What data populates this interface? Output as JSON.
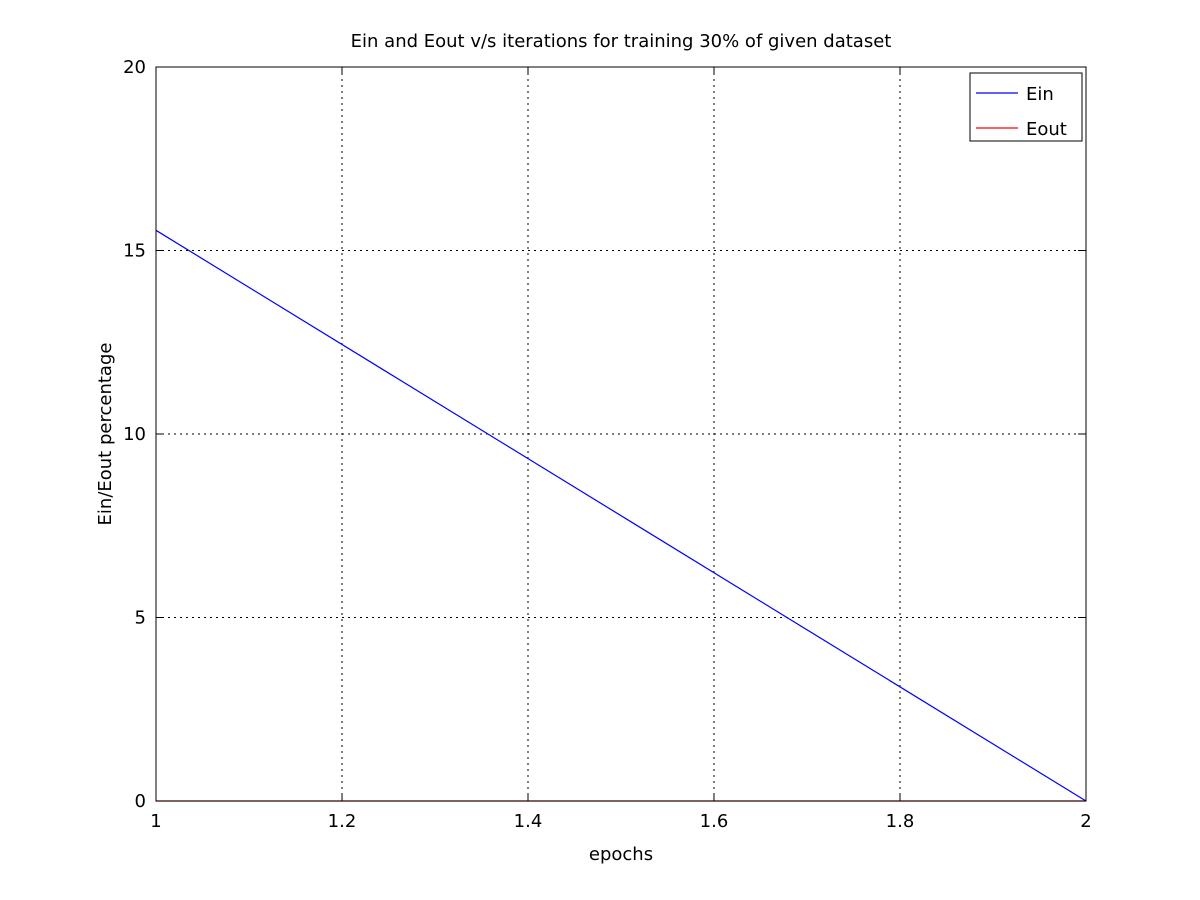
{
  "chart_data": {
    "type": "line",
    "title": "Ein and Eout v/s iterations for training 30% of given dataset",
    "xlabel": "epochs",
    "ylabel": "Ein/Eout percentage",
    "xlim": [
      1,
      2
    ],
    "ylim": [
      0,
      20
    ],
    "xticks": [
      1,
      1.2,
      1.4,
      1.6,
      1.8,
      2
    ],
    "xtick_labels": [
      "1",
      "1.2",
      "1.4",
      "1.6",
      "1.8",
      "2"
    ],
    "yticks": [
      0,
      5,
      10,
      15,
      20
    ],
    "ytick_labels": [
      "0",
      "5",
      "10",
      "15",
      "20"
    ],
    "grid": true,
    "legend_position": "top-right",
    "series": [
      {
        "name": "Ein",
        "color": "#0000ff",
        "x": [
          1,
          2
        ],
        "y": [
          15.55,
          0
        ]
      },
      {
        "name": "Eout",
        "color": "#ff0000",
        "x": [
          1,
          2
        ],
        "y": [
          0,
          0
        ]
      }
    ]
  }
}
